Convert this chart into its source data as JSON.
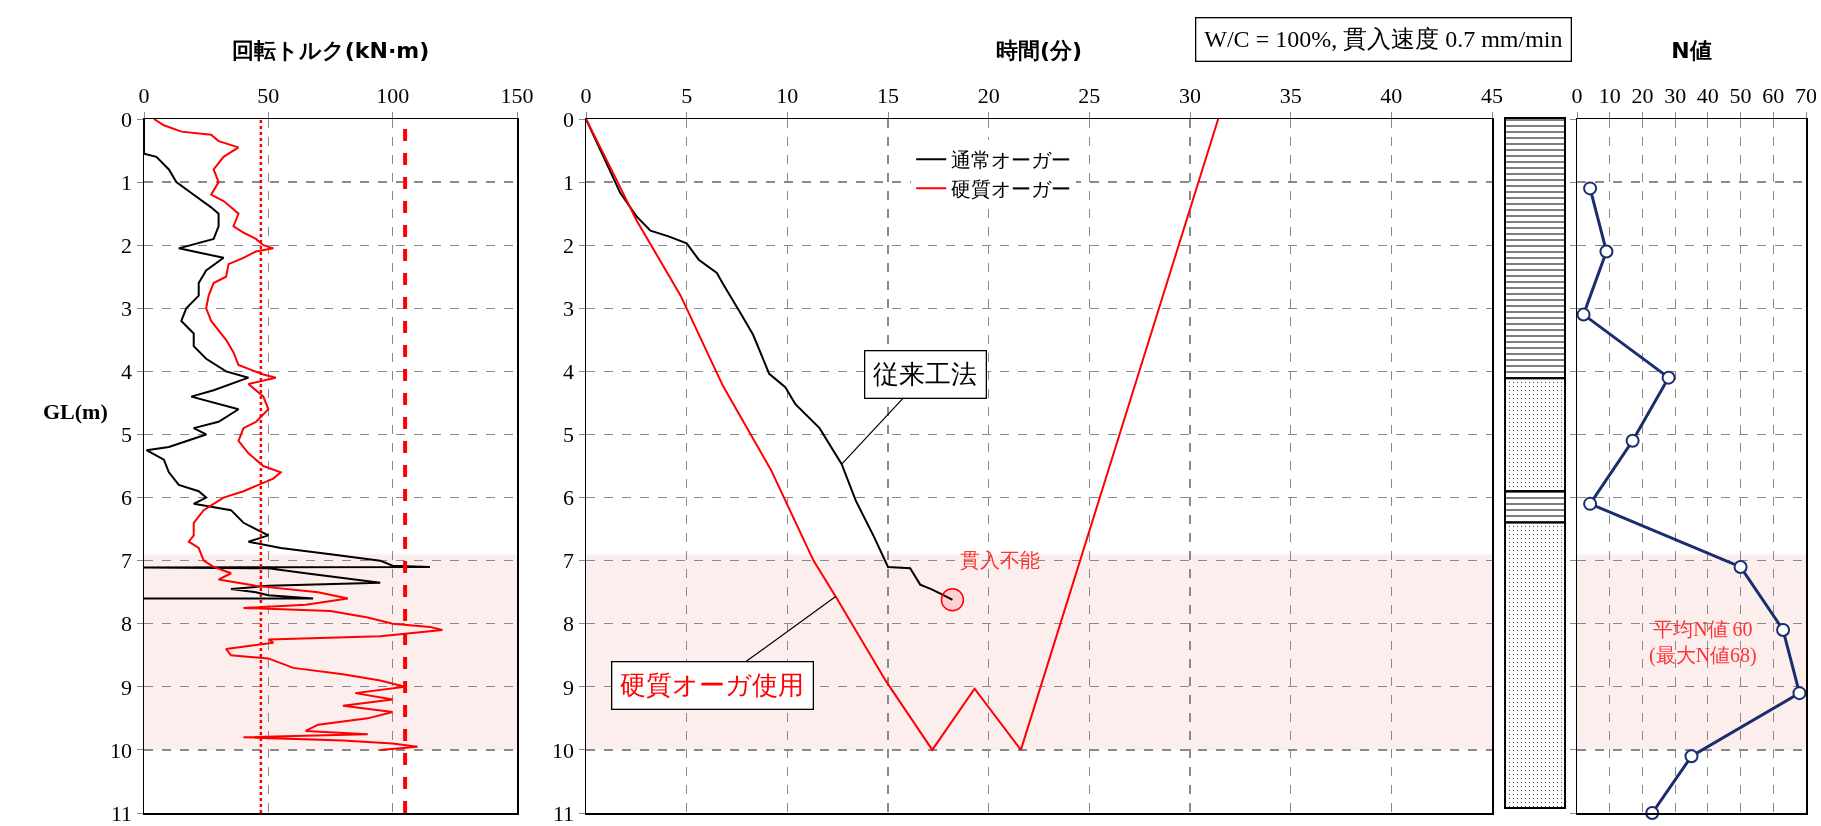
{
  "chart_data": [
    {
      "type": "line",
      "xlabel": "回転トルク(kN·m)",
      "ylabel": "GL(m)",
      "xlim": [
        0,
        150
      ],
      "xticks": [
        0,
        50,
        100,
        150
      ],
      "ylim": [
        11,
        0
      ],
      "yticks": [
        0,
        1,
        2,
        3,
        4,
        5,
        6,
        7,
        8,
        9,
        10,
        11
      ],
      "grid": true,
      "series": [
        {
          "color": "#000000",
          "x": [
            0,
            0,
            5,
            10,
            13,
            20,
            27,
            30,
            30,
            28,
            14,
            32,
            25,
            22,
            22,
            17,
            15,
            20,
            20,
            25,
            33,
            42,
            28,
            19,
            38,
            30,
            20,
            25,
            10,
            1,
            8,
            10,
            14,
            22,
            25,
            20,
            35,
            40,
            45,
            50,
            42,
            55,
            75,
            95,
            100,
            115,
            0,
            50,
            65,
            95,
            50,
            35,
            45,
            50,
            68,
            0
          ],
          "values": [
            0,
            0.55,
            0.6,
            0.8,
            1.0,
            1.2,
            1.4,
            1.5,
            1.7,
            1.9,
            2.05,
            2.2,
            2.4,
            2.6,
            2.8,
            3.0,
            3.2,
            3.4,
            3.6,
            3.8,
            4.0,
            4.1,
            4.3,
            4.4,
            4.6,
            4.8,
            4.9,
            5.0,
            5.2,
            5.25,
            5.4,
            5.6,
            5.8,
            5.9,
            6.0,
            6.1,
            6.2,
            6.4,
            6.5,
            6.6,
            6.7,
            6.8,
            6.9,
            7.0,
            7.08,
            7.1,
            7.11,
            7.12,
            7.2,
            7.35,
            7.4,
            7.45,
            7.5,
            7.55,
            7.6,
            7.6
          ]
        },
        {
          "color": "#ff0000",
          "x": [
            4,
            8,
            15,
            27,
            30,
            38,
            32,
            28,
            30,
            27,
            32,
            35,
            38,
            36,
            40,
            45,
            48,
            52,
            45,
            40,
            34,
            33,
            28,
            26,
            25,
            27,
            31,
            33,
            36,
            38,
            48,
            53,
            42,
            48,
            50,
            45,
            40,
            38,
            42,
            48,
            55,
            52,
            40,
            32,
            28,
            24,
            20,
            20,
            18,
            22,
            24,
            28,
            35,
            30,
            45,
            70,
            82,
            65,
            40,
            75,
            90,
            100,
            115,
            120,
            95,
            50,
            52,
            33,
            35,
            50,
            60,
            80,
            95,
            105,
            85,
            100,
            80,
            100,
            90,
            70,
            65,
            90,
            40,
            80,
            100,
            110,
            95
          ],
          "values": [
            0,
            0.1,
            0.2,
            0.25,
            0.35,
            0.45,
            0.6,
            0.8,
            1.0,
            1.2,
            1.3,
            1.4,
            1.5,
            1.7,
            1.8,
            1.9,
            2.0,
            2.05,
            2.1,
            2.2,
            2.3,
            2.5,
            2.6,
            2.8,
            3.0,
            3.2,
            3.4,
            3.5,
            3.7,
            3.9,
            4.05,
            4.1,
            4.2,
            4.4,
            4.6,
            4.8,
            4.9,
            5.1,
            5.3,
            5.5,
            5.6,
            5.7,
            5.9,
            6.0,
            6.1,
            6.2,
            6.4,
            6.6,
            6.7,
            6.8,
            7.0,
            7.1,
            7.2,
            7.3,
            7.4,
            7.5,
            7.6,
            7.7,
            7.75,
            7.8,
            7.9,
            8.0,
            8.05,
            8.1,
            8.2,
            8.25,
            8.3,
            8.4,
            8.5,
            8.55,
            8.7,
            8.8,
            8.9,
            9.0,
            9.1,
            9.2,
            9.3,
            9.4,
            9.5,
            9.6,
            9.7,
            9.75,
            9.8,
            9.85,
            9.9,
            9.95,
            10.0
          ]
        }
      ],
      "ref_lines": [
        {
          "axis": "x",
          "value": 47,
          "color": "#ff0000",
          "line_style": "dotted"
        },
        {
          "axis": "x",
          "value": 105,
          "color": "#ff0000",
          "line_style": "dashed"
        }
      ],
      "bands": [
        {
          "axis": "y",
          "from": 6.9,
          "to": 10,
          "color": "#fdeeee"
        }
      ]
    },
    {
      "type": "line",
      "xlabel": "時間(分)",
      "xlim": [
        0,
        45
      ],
      "xticks": [
        0,
        5,
        10,
        15,
        20,
        25,
        30,
        35,
        40,
        45
      ],
      "ylim": [
        11,
        0
      ],
      "yticks": [
        0,
        1,
        2,
        3,
        4,
        5,
        6,
        7,
        8,
        9,
        10,
        11
      ],
      "grid": true,
      "legend": "top",
      "series": [
        {
          "name": "通常オーガー",
          "color": "#000000",
          "x": [
            0,
            1.7,
            2.5,
            3.2,
            4.1,
            5.0,
            5.6,
            6.5,
            6.8,
            7.7,
            8.3,
            9.1,
            9.9,
            10.4,
            11.6,
            12.7,
            13.4,
            14.3,
            15.0,
            16.1,
            16.6,
            17.2,
            17.9,
            18.2
          ],
          "values": [
            0,
            1.17,
            1.54,
            1.77,
            1.86,
            1.97,
            2.23,
            2.44,
            2.61,
            3.09,
            3.42,
            4.04,
            4.25,
            4.52,
            4.9,
            5.47,
            6.05,
            6.62,
            7.1,
            7.12,
            7.38,
            7.46,
            7.57,
            7.62
          ]
        },
        {
          "name": "硬質オーガー",
          "color": "#ff0000",
          "x": [
            0,
            1.4,
            2.5,
            4.7,
            6.8,
            9.2,
            11.3,
            12.4,
            14.9,
            17.2,
            19.3,
            21.6,
            31.4
          ],
          "values": [
            0,
            0.89,
            1.6,
            2.8,
            4.23,
            5.57,
            7.0,
            7.57,
            8.91,
            10.0,
            9.03,
            10.0,
            0
          ]
        }
      ],
      "bands": [
        {
          "axis": "y",
          "from": 6.9,
          "to": 10,
          "color": "#fdeeee"
        }
      ],
      "annotations": [
        "W/C = 100%, 貫入速度 0.7 mm/min",
        {
          "text": "従来工法",
          "x": 12.7,
          "y": 5.47
        },
        {
          "text": "硬質オーガ使用",
          "x": 12.4,
          "y": 7.57
        },
        {
          "text": "貫入不能",
          "x": 18.2,
          "y": 7.62
        }
      ]
    },
    {
      "type": "line",
      "xlabel": "N値",
      "xlim": [
        0,
        70
      ],
      "xticks": [
        0,
        10,
        20,
        30,
        40,
        50,
        60,
        70
      ],
      "ylim": [
        11,
        0
      ],
      "yticks": [
        0,
        1,
        2,
        3,
        4,
        5,
        6,
        7,
        8,
        9,
        10,
        11
      ],
      "grid": true,
      "tick_labels": "x",
      "marker": "circle",
      "series": [
        {
          "color": "#1a2e6e",
          "x": [
            4,
            9,
            2,
            28,
            17,
            4,
            50,
            63,
            68,
            35,
            23
          ],
          "values": [
            1.1,
            2.1,
            3.1,
            4.1,
            5.1,
            6.1,
            7.1,
            8.1,
            9.1,
            10.1,
            11
          ]
        }
      ],
      "bands": [
        {
          "axis": "y",
          "from": 6.9,
          "to": 10,
          "color": "#fdeeee"
        }
      ],
      "annotations": [
        "平均N値 60\n(最大N値68)"
      ]
    }
  ]
}
